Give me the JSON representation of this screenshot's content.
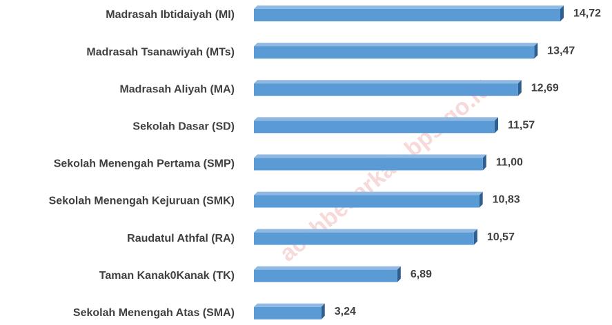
{
  "chart_data": {
    "type": "bar",
    "orientation": "horizontal",
    "categories": [
      "Madrasah Ibtidaiyah (MI)",
      "Madrasah Tsanawiyah (MTs)",
      "Madrasah Aliyah (MA)",
      "Sekolah Dasar (SD)",
      "Sekolah Menengah Pertama (SMP)",
      "Sekolah Menengah Kejuruan (SMK)",
      "Raudatul Athfal (RA)",
      "Taman Kanak0Kanak (TK)",
      "Sekolah Menengah Atas (SMA)"
    ],
    "values": [
      14.72,
      13.47,
      12.69,
      11.57,
      11.0,
      10.83,
      10.57,
      6.89,
      3.24
    ],
    "value_labels": [
      "14,72",
      "13,47",
      "12,69",
      "11,57",
      "11,00",
      "10,83",
      "10,57",
      "6,89",
      "3,24"
    ],
    "color": "#5b9bd5",
    "watermark": "acehbesarkab.bps.go.id"
  }
}
